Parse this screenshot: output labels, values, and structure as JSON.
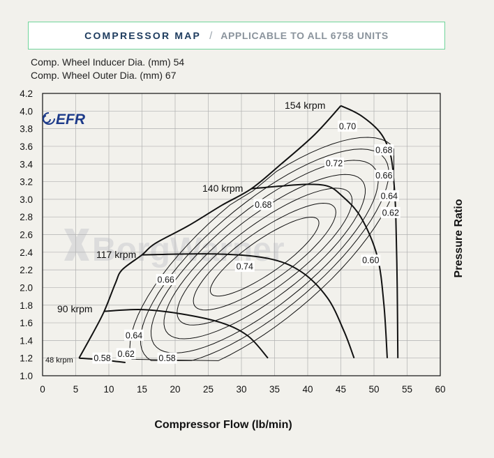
{
  "header": {
    "title": "COMPRESSOR MAP",
    "separator": "/",
    "subtitle": "APPLICABLE TO ALL 6758  UNITS"
  },
  "specs": {
    "inducer": "Comp. Wheel Inducer Dia. (mm) 54",
    "outer": "Comp. Wheel Outer Dia. (mm) 67"
  },
  "logos": {
    "efr": "EFR",
    "watermark": "BorgWarner"
  },
  "colors": {
    "header_border": "#6fd49a",
    "header_title": "#1d3b5e",
    "lines": "#111111",
    "grid": "#b0b0b0"
  },
  "chart_data": {
    "type": "line",
    "xlabel": "Compressor Flow (lb/min)",
    "ylabel": "Pressure Ratio",
    "xlim": [
      0,
      60
    ],
    "ylim": [
      1.0,
      4.2
    ],
    "x_ticks": [
      "0",
      "5",
      "10",
      "15",
      "20",
      "25",
      "30",
      "35",
      "40",
      "45",
      "50",
      "55",
      "60"
    ],
    "y_ticks": [
      "1.0",
      "1.2",
      "1.4",
      "1.6",
      "1.8",
      "2.0",
      "2.2",
      "2.4",
      "2.6",
      "2.8",
      "3.0",
      "3.2",
      "3.4",
      "3.6",
      "3.8",
      "4.0",
      "4.2"
    ],
    "grid": true,
    "surge_line": [
      [
        5.5,
        1.2
      ],
      [
        7.5,
        1.47
      ],
      [
        9.3,
        1.73
      ],
      [
        11,
        2.05
      ],
      [
        12,
        2.2
      ],
      [
        15,
        2.37
      ],
      [
        17,
        2.5
      ],
      [
        22,
        2.7
      ],
      [
        27,
        2.93
      ],
      [
        31.5,
        3.12
      ],
      [
        36,
        3.4
      ],
      [
        41,
        3.73
      ],
      [
        45,
        4.06
      ]
    ],
    "speed_lines": [
      {
        "label": "48 krpm",
        "points": [
          [
            5.5,
            1.2
          ],
          [
            9,
            1.18
          ],
          [
            12.5,
            1.15
          ]
        ]
      },
      {
        "label": "90 krpm",
        "points": [
          [
            9.3,
            1.73
          ],
          [
            15,
            1.75
          ],
          [
            21,
            1.7
          ],
          [
            27,
            1.6
          ],
          [
            31,
            1.45
          ],
          [
            34,
            1.2
          ]
        ]
      },
      {
        "label": "117 krpm",
        "points": [
          [
            15,
            2.37
          ],
          [
            26,
            2.38
          ],
          [
            34,
            2.33
          ],
          [
            39,
            2.18
          ],
          [
            43,
            1.88
          ],
          [
            45.5,
            1.5
          ],
          [
            47,
            1.2
          ]
        ]
      },
      {
        "label": "140 krpm",
        "points": [
          [
            31.5,
            3.12
          ],
          [
            36,
            3.15
          ],
          [
            40,
            3.17
          ],
          [
            43,
            3.15
          ],
          [
            45,
            3.05
          ],
          [
            48,
            2.8
          ],
          [
            50.5,
            2.35
          ],
          [
            51.5,
            1.8
          ],
          [
            52,
            1.2
          ]
        ]
      },
      {
        "label": "154 krpm",
        "points": [
          [
            45,
            4.06
          ],
          [
            48,
            3.95
          ],
          [
            51,
            3.75
          ],
          [
            52.5,
            3.5
          ],
          [
            53,
            3.2
          ],
          [
            53.3,
            2.8
          ],
          [
            53.5,
            2.0
          ],
          [
            53.6,
            1.2
          ]
        ]
      }
    ],
    "efficiency_labels": [
      {
        "label": "0.58",
        "x": 9.0,
        "y": 1.2
      },
      {
        "label": "0.58",
        "x": 18.8,
        "y": 1.2
      },
      {
        "label": "0.62",
        "x": 12.6,
        "y": 1.25
      },
      {
        "label": "0.64",
        "x": 13.8,
        "y": 1.46
      },
      {
        "label": "0.66",
        "x": 18.6,
        "y": 2.09
      },
      {
        "label": "0.68",
        "x": 33.3,
        "y": 2.94
      },
      {
        "label": "0.70",
        "x": 46.0,
        "y": 3.83
      },
      {
        "label": "0.72",
        "x": 44.0,
        "y": 3.41
      },
      {
        "label": "0.74",
        "x": 30.5,
        "y": 2.24
      },
      {
        "label": "0.68",
        "x": 51.5,
        "y": 3.56
      },
      {
        "label": "0.66",
        "x": 51.5,
        "y": 3.27
      },
      {
        "label": "0.64",
        "x": 52.3,
        "y": 3.04
      },
      {
        "label": "0.62",
        "x": 52.5,
        "y": 2.85
      },
      {
        "label": "0.60",
        "x": 49.5,
        "y": 2.31
      }
    ]
  }
}
